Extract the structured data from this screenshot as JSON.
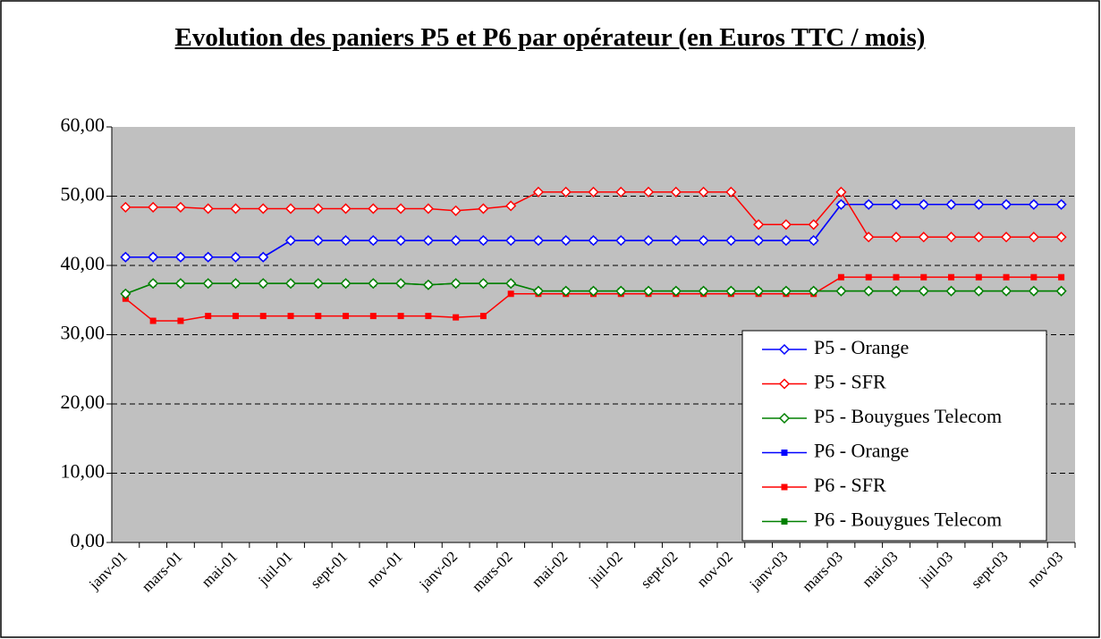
{
  "chart_data": {
    "type": "line",
    "title": "Evolution des paniers P5 et P6 par opérateur (en Euros TTC / mois)",
    "categories": [
      "janv-01",
      null,
      "mars-01",
      null,
      "mai-01",
      null,
      "juil-01",
      null,
      "sept-01",
      null,
      "nov-01",
      null,
      "janv-02",
      null,
      "mars-02",
      null,
      "mai-02",
      null,
      "juil-02",
      null,
      "sept-02",
      null,
      "nov-02",
      null,
      "janv-03",
      null,
      "mars-03",
      null,
      "mai-03",
      null,
      "juil-03",
      null,
      "sept-03",
      null,
      "nov-03"
    ],
    "series": [
      {
        "name": "P5 - Orange",
        "color": "#0000ff",
        "marker": "diamond",
        "values": [
          41.2,
          41.2,
          41.2,
          41.2,
          41.2,
          41.2,
          43.6,
          43.6,
          43.6,
          43.6,
          43.6,
          43.6,
          43.6,
          43.6,
          43.6,
          43.6,
          43.6,
          43.6,
          43.6,
          43.6,
          43.6,
          43.6,
          43.6,
          43.6,
          43.6,
          43.6,
          48.8,
          48.8,
          48.8,
          48.8,
          48.8,
          48.8,
          48.8,
          48.8,
          48.8
        ]
      },
      {
        "name": "P5 - SFR",
        "color": "#ff0000",
        "marker": "diamond",
        "values": [
          48.4,
          48.4,
          48.4,
          48.2,
          48.2,
          48.2,
          48.2,
          48.2,
          48.2,
          48.2,
          48.2,
          48.2,
          47.9,
          48.2,
          48.6,
          50.6,
          50.6,
          50.6,
          50.6,
          50.6,
          50.6,
          50.6,
          50.6,
          45.9,
          45.9,
          45.9,
          50.6,
          44.1,
          44.1,
          44.1,
          44.1,
          44.1,
          44.1,
          44.1,
          44.1
        ]
      },
      {
        "name": "P5 - Bouygues Telecom",
        "color": "#008000",
        "marker": "diamond",
        "values": [
          35.9,
          37.4,
          37.4,
          37.4,
          37.4,
          37.4,
          37.4,
          37.4,
          37.4,
          37.4,
          37.4,
          37.2,
          37.4,
          37.4,
          37.4,
          36.3,
          36.3,
          36.3,
          36.3,
          36.3,
          36.3,
          36.3,
          36.3,
          36.3,
          36.3,
          36.3,
          36.3,
          36.3,
          36.3,
          36.3,
          36.3,
          36.3,
          36.3,
          36.3,
          36.3
        ]
      },
      {
        "name": "P6 - Orange",
        "color": "#0000ff",
        "marker": "square",
        "values": [
          41.2,
          41.2,
          41.2,
          41.2,
          41.2,
          41.2,
          43.6,
          43.6,
          43.6,
          43.6,
          43.6,
          43.6,
          43.6,
          43.6,
          43.6,
          43.6,
          43.6,
          43.6,
          43.6,
          43.6,
          43.6,
          43.6,
          43.6,
          43.6,
          43.6,
          43.6,
          48.8,
          48.8,
          48.8,
          48.8,
          48.8,
          48.8,
          48.8,
          48.8,
          48.8
        ]
      },
      {
        "name": "P6 - SFR",
        "color": "#ff0000",
        "marker": "square",
        "values": [
          35.2,
          32.0,
          32.0,
          32.7,
          32.7,
          32.7,
          32.7,
          32.7,
          32.7,
          32.7,
          32.7,
          32.7,
          32.5,
          32.7,
          35.9,
          35.9,
          35.9,
          35.9,
          35.9,
          35.9,
          35.9,
          35.9,
          35.9,
          35.9,
          35.9,
          35.9,
          38.3,
          38.3,
          38.3,
          38.3,
          38.3,
          38.3,
          38.3,
          38.3,
          38.3
        ]
      },
      {
        "name": "P6 - Bouygues Telecom",
        "color": "#008000",
        "marker": "square",
        "values": [
          35.9,
          37.4,
          37.4,
          37.4,
          37.4,
          37.4,
          37.4,
          37.4,
          37.4,
          37.4,
          37.4,
          37.2,
          37.4,
          37.4,
          37.4,
          36.3,
          36.3,
          36.3,
          36.3,
          36.3,
          36.3,
          36.3,
          36.3,
          36.3,
          36.3,
          36.3,
          36.3,
          36.3,
          36.3,
          36.3,
          36.3,
          36.3,
          36.3,
          36.3,
          36.3
        ]
      }
    ],
    "ylim": [
      0,
      60
    ],
    "yticks": [
      {
        "value": 0,
        "label": "0,00"
      },
      {
        "value": 10,
        "label": "10,00"
      },
      {
        "value": 20,
        "label": "20,00"
      },
      {
        "value": 30,
        "label": "30,00"
      },
      {
        "value": 40,
        "label": "40,00"
      },
      {
        "value": 50,
        "label": "50,00"
      },
      {
        "value": 60,
        "label": "60,00"
      }
    ],
    "grid": true,
    "legend": "right"
  }
}
